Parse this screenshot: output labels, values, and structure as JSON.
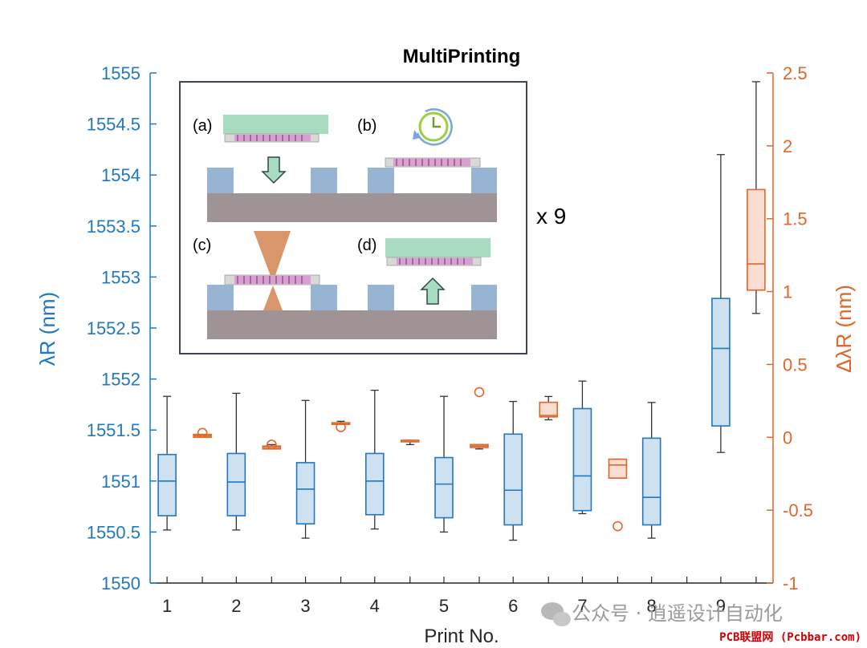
{
  "chart_data": {
    "type": "box",
    "title": "MultiPrinting",
    "xlabel": "Print No.",
    "ylabel_left": "λR (nm)",
    "ylabel_right": "ΔλR (nm)",
    "categories": [
      "1",
      "2",
      "3",
      "4",
      "5",
      "6",
      "7",
      "8",
      "9"
    ],
    "ylim_left": [
      1550,
      1555
    ],
    "ylim_right": [
      -1,
      2.5
    ],
    "yticks_left": [
      "1550",
      "1550.5",
      "1551",
      "1551.5",
      "1552",
      "1552.5",
      "1553",
      "1553.5",
      "1554",
      "1554.5",
      "1555"
    ],
    "yticks_right": [
      "-1",
      "-0.5",
      "0",
      "0.5",
      "1",
      "1.5",
      "2",
      "2.5"
    ],
    "series": [
      {
        "axis": "left",
        "color": "#1f78c1",
        "boxes": [
          {
            "x": 1,
            "min": 1550.52,
            "q1": 1550.66,
            "median": 1551.0,
            "q3": 1551.26,
            "max": 1551.83
          },
          {
            "x": 2,
            "min": 1550.52,
            "q1": 1550.66,
            "median": 1550.99,
            "q3": 1551.27,
            "max": 1551.86
          },
          {
            "x": 3,
            "min": 1550.44,
            "q1": 1550.58,
            "median": 1550.92,
            "q3": 1551.18,
            "max": 1551.79
          },
          {
            "x": 4,
            "min": 1550.53,
            "q1": 1550.67,
            "median": 1551.0,
            "q3": 1551.27,
            "max": 1551.89
          },
          {
            "x": 5,
            "min": 1550.5,
            "q1": 1550.64,
            "median": 1550.97,
            "q3": 1551.23,
            "max": 1551.83
          },
          {
            "x": 6,
            "min": 1550.42,
            "q1": 1550.57,
            "median": 1550.91,
            "q3": 1551.46,
            "max": 1551.78
          },
          {
            "x": 7,
            "min": 1550.68,
            "q1": 1550.71,
            "median": 1551.05,
            "q3": 1551.71,
            "max": 1551.98
          },
          {
            "x": 8,
            "min": 1550.44,
            "q1": 1550.57,
            "median": 1550.84,
            "q3": 1551.42,
            "max": 1551.77
          },
          {
            "x": 9,
            "min": 1551.28,
            "q1": 1551.54,
            "median": 1552.3,
            "q3": 1552.79,
            "max": 1554.2
          }
        ],
        "outliers": []
      },
      {
        "axis": "right",
        "color": "#e0662a",
        "boxes": [
          {
            "x": 1,
            "min": 0.0,
            "q1": 0.0,
            "median": 0.01,
            "q3": 0.02,
            "max": 0.02
          },
          {
            "x": 2,
            "min": -0.08,
            "q1": -0.08,
            "median": -0.07,
            "q3": -0.06,
            "max": -0.05
          },
          {
            "x": 3,
            "min": 0.09,
            "q1": 0.09,
            "median": 0.09,
            "q3": 0.1,
            "max": 0.11
          },
          {
            "x": 4,
            "min": -0.05,
            "q1": -0.03,
            "median": -0.03,
            "q3": -0.02,
            "max": -0.02
          },
          {
            "x": 5,
            "min": -0.08,
            "q1": -0.07,
            "median": -0.06,
            "q3": -0.05,
            "max": -0.05
          },
          {
            "x": 6,
            "min": 0.12,
            "q1": 0.14,
            "median": 0.15,
            "q3": 0.24,
            "max": 0.28
          },
          {
            "x": 7,
            "min": -0.28,
            "q1": -0.28,
            "median": -0.19,
            "q3": -0.15,
            "max": -0.15
          },
          {
            "x": 9,
            "min": 0.85,
            "q1": 1.01,
            "median": 1.19,
            "q3": 1.7,
            "max": 2.44
          }
        ],
        "outliers": [
          {
            "x": 1,
            "y": 0.03
          },
          {
            "x": 2,
            "y": -0.05
          },
          {
            "x": 3,
            "y": 0.07
          },
          {
            "x": 5,
            "y": 0.31
          },
          {
            "x": 7,
            "y": -0.61
          }
        ]
      }
    ],
    "grid": false,
    "inset": {
      "labels": [
        "(a)",
        "(b)",
        "(c)",
        "(d)"
      ],
      "repeat_label": "x 9"
    }
  },
  "watermark": {
    "text": "公众号 · 逍遥设计自动化",
    "site": "PCB联盟网 (Pcbbar.com)"
  }
}
